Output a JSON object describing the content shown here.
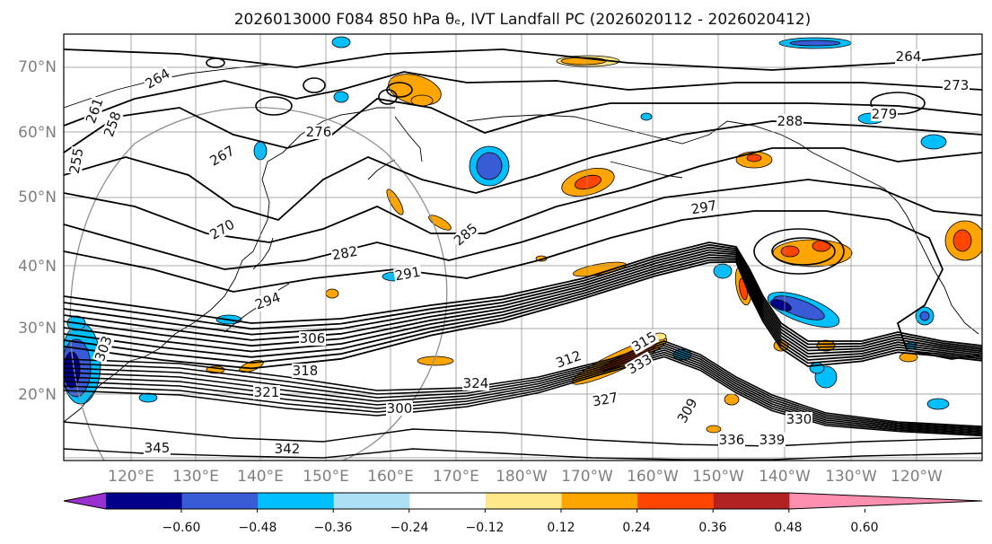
{
  "title": "2026013000 F084 850 hPa θₑ, IVT Landfall PC (2026020112 - 2026020412)",
  "map": {
    "lat_labels": [
      "70°N",
      "60°N",
      "50°N",
      "40°N",
      "30°N",
      "20°N"
    ],
    "lon_labels": [
      "120°E",
      "130°E",
      "140°E",
      "150°E",
      "160°E",
      "170°E",
      "180°W",
      "170°W",
      "160°W",
      "150°W",
      "140°W",
      "130°W",
      "120°W"
    ],
    "extent": {
      "lon_min": 110,
      "lon_max": 255,
      "lat_min": 10,
      "lat_max": 75
    }
  },
  "contour_labels": [
    "264",
    "267",
    "270",
    "264",
    "273",
    "276",
    "279",
    "285",
    "288",
    "297",
    "282",
    "291",
    "294",
    "306",
    "318",
    "321",
    "324",
    "327",
    "309",
    "315",
    "312",
    "333",
    "336",
    "339",
    "330",
    "345",
    "342",
    "261",
    "255",
    "258",
    "303",
    "300"
  ],
  "colorbar": {
    "ticks": [
      "−0.60",
      "−0.48",
      "−0.36",
      "−0.24",
      "−0.12",
      "0.12",
      "0.24",
      "0.36",
      "0.48",
      "0.60"
    ],
    "colors": [
      "#9b30d0",
      "#00008b",
      "#3a5bd6",
      "#00bfff",
      "#aee0f5",
      "#ffffff",
      "#ffe88a",
      "#ffa500",
      "#ff4500",
      "#b22222",
      "#ff8fb0"
    ]
  },
  "chart_data": {
    "type": "heatmap",
    "title": "2026013000 F084 850 hPa θₑ, IVT Landfall PC (2026020112 - 2026020412)",
    "xlabel": "",
    "ylabel": "",
    "contour_field": "850 hPa theta-e",
    "fill_field": "IVT Landfall PC",
    "contour_levels_labeled": [
      255,
      258,
      261,
      264,
      267,
      270,
      273,
      276,
      279,
      282,
      285,
      288,
      291,
      294,
      297,
      300,
      303,
      306,
      309,
      312,
      315,
      318,
      321,
      324,
      327,
      330,
      333,
      336,
      339,
      342,
      345
    ],
    "colorbar_ticks": [
      -0.6,
      -0.48,
      -0.36,
      -0.24,
      -0.12,
      0.12,
      0.24,
      0.36,
      0.48,
      0.6
    ],
    "xlim": [
      110,
      255
    ],
    "ylim": [
      10,
      75
    ],
    "grid": true,
    "colorbar_placement": "bottom"
  }
}
